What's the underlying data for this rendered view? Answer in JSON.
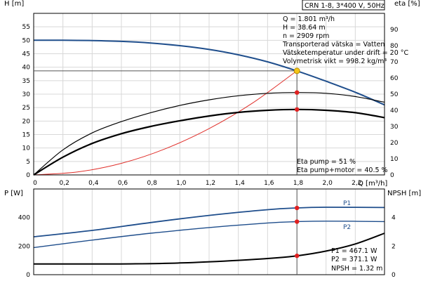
{
  "header": {
    "pump_label": "CRN 1-8, 3*400 V, 50Hz"
  },
  "operating_point": {
    "lines": [
      "Q = 1.801 m³/h",
      "H = 38.64 m",
      "n = 2909 rpm",
      "Transporterad vätska = Vatten",
      "Vätsketemperatur under drift = 20 °C",
      "Volymetrisk vikt = 998.2 kg/m³"
    ],
    "eta_lines": [
      "Eta pump = 51 %",
      "Eta pump+motor = 40.5 %"
    ],
    "power_lines": [
      "P1 = 467.1 W",
      "P2 = 371.1 W",
      "NPSH = 1.32 m"
    ]
  },
  "colors": {
    "head_curve": "#1f4e8c",
    "system_curve": "#e0302b",
    "marker": "#e02020",
    "duty_marker": "#f5c518",
    "grid": "#d8d8d8"
  },
  "chart_data": [
    {
      "type": "line",
      "title": "",
      "xlabel": "Q [m³/h]",
      "ylabel": "H [m]",
      "y2label": "eta [%]",
      "xlim": [
        0,
        2.4
      ],
      "ylim": [
        0,
        60
      ],
      "y2lim": [
        0,
        100
      ],
      "x_ticks": [
        "0",
        "0,2",
        "0,4",
        "0,6",
        "0,8",
        "1,0",
        "1,2",
        "1,4",
        "1,6",
        "1,8",
        "2,0",
        "2,2"
      ],
      "y_ticks": [
        "0",
        "5",
        "10",
        "15",
        "20",
        "25",
        "30",
        "35",
        "40",
        "45",
        "50",
        "55"
      ],
      "y2_ticks": [
        "0",
        "10",
        "20",
        "30",
        "40",
        "50",
        "60",
        "70",
        "80",
        "90"
      ],
      "grid": true,
      "series": [
        {
          "axis": "left",
          "x": [
            0,
            0.2,
            0.4,
            0.6,
            0.8,
            1.0,
            1.2,
            1.4,
            1.6,
            1.8,
            2.0,
            2.2,
            2.4
          ],
          "values": [
            50,
            50,
            49.9,
            49.6,
            49,
            48,
            46.6,
            44.6,
            42,
            38.64,
            34.8,
            30.7,
            26
          ]
        },
        {
          "axis": "left",
          "x": [
            0,
            0.3,
            0.6,
            0.9,
            1.2,
            1.5,
            1.8
          ],
          "values": [
            0,
            1.1,
            4.3,
            9.7,
            17.2,
            26.8,
            38.64
          ]
        },
        {
          "axis": "right",
          "x": [
            0,
            0.2,
            0.4,
            0.6,
            0.8,
            1.0,
            1.2,
            1.4,
            1.6,
            1.8,
            2.0,
            2.2,
            2.4
          ],
          "values": [
            0,
            15.5,
            26,
            33,
            38.5,
            43,
            46.5,
            49,
            50.5,
            51,
            50.5,
            48.5,
            45
          ]
        },
        {
          "axis": "right",
          "x": [
            0,
            0.2,
            0.4,
            0.6,
            0.8,
            1.0,
            1.2,
            1.4,
            1.6,
            1.8,
            2.0,
            2.2,
            2.4
          ],
          "values": [
            0,
            11,
            19.5,
            25.5,
            30,
            33.5,
            36.5,
            38.7,
            40,
            40.5,
            40,
            38.5,
            35.5
          ]
        }
      ],
      "markers": [
        {
          "axis": "left",
          "x": 1.801,
          "y": 38.64,
          "kind": "duty"
        },
        {
          "axis": "right",
          "x": 1.801,
          "y": 51,
          "kind": "point"
        },
        {
          "axis": "right",
          "x": 1.801,
          "y": 40.5,
          "kind": "point"
        }
      ]
    },
    {
      "type": "line",
      "title": "",
      "xlabel": "Q [m³/h]",
      "ylabel": "P [W]",
      "y2label": "NPSH [m]",
      "xlim": [
        0,
        2.4
      ],
      "ylim": [
        0,
        600
      ],
      "y2lim": [
        0,
        6
      ],
      "y_ticks": [
        "0",
        "200",
        "400"
      ],
      "y2_ticks": [
        "0",
        "2",
        "4"
      ],
      "grid": false,
      "series": [
        {
          "name": "P1",
          "axis": "left",
          "x": [
            0,
            0.4,
            0.8,
            1.2,
            1.6,
            1.8,
            2.0,
            2.4
          ],
          "values": [
            265,
            310,
            365,
            415,
            455,
            467.1,
            472,
            470
          ]
        },
        {
          "name": "P2",
          "axis": "left",
          "x": [
            0,
            0.4,
            0.8,
            1.2,
            1.6,
            1.8,
            2.0,
            2.4
          ],
          "values": [
            190,
            242,
            290,
            330,
            362,
            371.1,
            375,
            372
          ]
        },
        {
          "axis": "right",
          "x": [
            0,
            0.4,
            0.7,
            1.0,
            1.3,
            1.6,
            1.8,
            2.0,
            2.2,
            2.4
          ],
          "values": [
            0.75,
            0.75,
            0.76,
            0.82,
            0.95,
            1.13,
            1.32,
            1.65,
            2.15,
            2.9
          ]
        }
      ],
      "markers": [
        {
          "axis": "left",
          "x": 1.801,
          "y": 467.1,
          "kind": "point"
        },
        {
          "axis": "left",
          "x": 1.801,
          "y": 371.1,
          "kind": "point"
        },
        {
          "axis": "right",
          "x": 1.801,
          "y": 1.32,
          "kind": "point"
        }
      ]
    }
  ]
}
